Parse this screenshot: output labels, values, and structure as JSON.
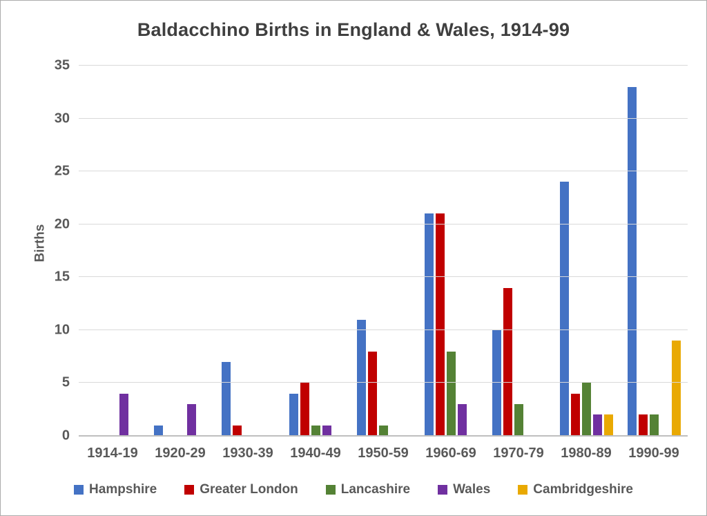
{
  "chart_data": {
    "type": "bar",
    "title": "Baldacchino Births in England & Wales, 1914-99",
    "xlabel": "",
    "ylabel": "Births",
    "categories": [
      "1914-19",
      "1920-29",
      "1930-39",
      "1940-49",
      "1950-59",
      "1960-69",
      "1970-79",
      "1980-89",
      "1990-99"
    ],
    "series": [
      {
        "name": "Hampshire",
        "color": "#4472C4",
        "values": [
          0,
          1,
          7,
          4,
          11,
          21,
          10,
          24,
          33
        ]
      },
      {
        "name": "Greater London",
        "color": "#C00000",
        "values": [
          0,
          0,
          1,
          5,
          8,
          21,
          14,
          4,
          2
        ]
      },
      {
        "name": "Lancashire",
        "color": "#548235",
        "values": [
          0,
          0,
          0,
          1,
          1,
          8,
          3,
          5,
          2
        ]
      },
      {
        "name": "Wales",
        "color": "#7030A0",
        "values": [
          4,
          3,
          0,
          1,
          0,
          3,
          0,
          2,
          0
        ]
      },
      {
        "name": "Cambridgeshire",
        "color": "#E9A902",
        "values": [
          0,
          0,
          0,
          0,
          0,
          0,
          0,
          2,
          9
        ]
      }
    ],
    "y_ticks": [
      35,
      30,
      25,
      20,
      15,
      10,
      5,
      0
    ],
    "ylim": [
      0,
      35
    ],
    "grid": true,
    "legend_position": "bottom"
  }
}
